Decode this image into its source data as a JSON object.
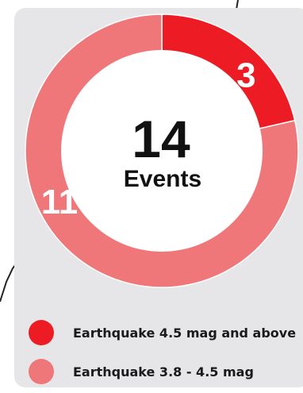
{
  "colors": {
    "major": "#ed1c24",
    "minor": "#f07779",
    "card": "#e6e6e8",
    "center": "#ffffff",
    "text": "#111111"
  },
  "chart_data": {
    "type": "pie",
    "title": "",
    "center_value": "14",
    "center_label": "Events",
    "slices": [
      {
        "name": "Earthquake 4.5 mag and above",
        "value": 3,
        "color": "#ed1c24"
      },
      {
        "name": "Earthquake 3.8 - 4.5 mag",
        "value": 11,
        "color": "#f07779"
      }
    ],
    "legend_position": "bottom"
  },
  "legend": [
    {
      "label": "Earthquake 4.5 mag and above",
      "color": "#ed1c24"
    },
    {
      "label": "Earthquake 3.8 - 4.5 mag",
      "color": "#f07779"
    }
  ]
}
